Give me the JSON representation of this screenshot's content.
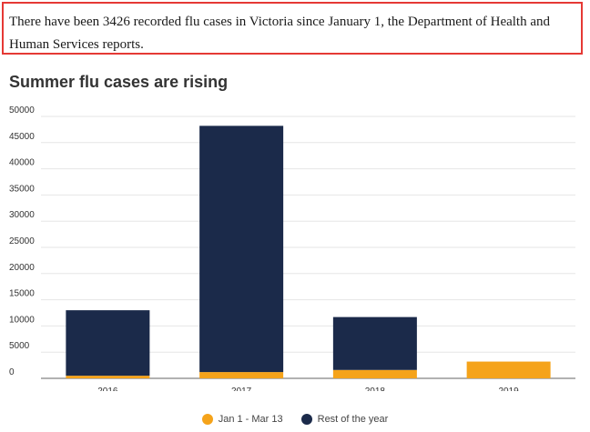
{
  "intro_text": "There have been 3426 recorded flu cases in Victoria since January 1, the Department of Health and Human Services reports.",
  "chart_data": {
    "type": "bar",
    "stacked": true,
    "title": "Summer flu cases are rising",
    "categories": [
      "2016",
      "2017",
      "2018",
      "2019"
    ],
    "series": [
      {
        "name": "Jan 1 - Mar 13",
        "color": "#f5a31a",
        "values": [
          500,
          1200,
          1600,
          3200
        ]
      },
      {
        "name": "Rest of the year",
        "color": "#1b2a4a",
        "values": [
          12500,
          47000,
          10100,
          0
        ]
      }
    ],
    "yticks": [
      0,
      5000,
      10000,
      15000,
      20000,
      25000,
      30000,
      35000,
      40000,
      45000,
      50000
    ],
    "ylim": [
      0,
      50000
    ],
    "grid": true,
    "legend_position": "bottom-center"
  }
}
